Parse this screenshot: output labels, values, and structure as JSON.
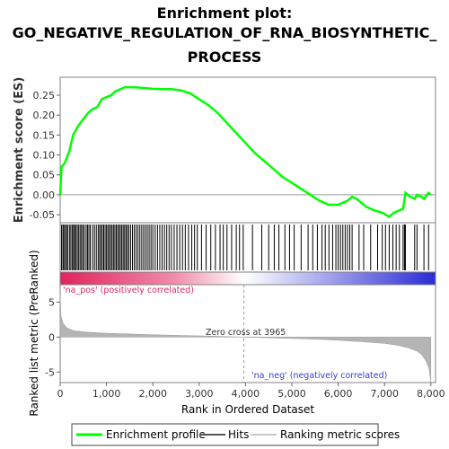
{
  "title_lines": [
    "Enrichment plot:",
    "GO_NEGATIVE_REGULATION_OF_RNA_BIOSYNTHETIC_",
    "PROCESS"
  ],
  "legend": {
    "items": [
      {
        "label": "Enrichment profile",
        "color": "#00ff00"
      },
      {
        "label": "Hits",
        "color": "#555555"
      },
      {
        "label": "Ranking metric scores",
        "color": "#c8c8c8"
      }
    ]
  },
  "chart_data": [
    {
      "type": "line",
      "name": "enrichment-profile",
      "ylabel": "Enrichment score (ES)",
      "ylim": [
        -0.07,
        0.295
      ],
      "xlim": [
        0,
        8100
      ],
      "yticks": [
        "0.25",
        "0.20",
        "0.15",
        "0.10",
        "0.05",
        "0.00",
        "-0.05"
      ],
      "ytick_values": [
        0.25,
        0.2,
        0.15,
        0.1,
        0.05,
        0.0,
        -0.05
      ],
      "color": "#00ff00",
      "points": [
        [
          0,
          0.0
        ],
        [
          30,
          0.07
        ],
        [
          100,
          0.08
        ],
        [
          200,
          0.11
        ],
        [
          280,
          0.15
        ],
        [
          400,
          0.175
        ],
        [
          500,
          0.19
        ],
        [
          600,
          0.205
        ],
        [
          700,
          0.215
        ],
        [
          800,
          0.22
        ],
        [
          900,
          0.24
        ],
        [
          1000,
          0.245
        ],
        [
          1100,
          0.25
        ],
        [
          1200,
          0.26
        ],
        [
          1300,
          0.265
        ],
        [
          1400,
          0.27
        ],
        [
          1600,
          0.27
        ],
        [
          1800,
          0.268
        ],
        [
          2000,
          0.266
        ],
        [
          2200,
          0.265
        ],
        [
          2400,
          0.265
        ],
        [
          2600,
          0.262
        ],
        [
          2800,
          0.255
        ],
        [
          3000,
          0.24
        ],
        [
          3200,
          0.225
        ],
        [
          3400,
          0.205
        ],
        [
          3600,
          0.18
        ],
        [
          3800,
          0.155
        ],
        [
          4000,
          0.13
        ],
        [
          4200,
          0.105
        ],
        [
          4400,
          0.085
        ],
        [
          4600,
          0.065
        ],
        [
          4800,
          0.045
        ],
        [
          5000,
          0.03
        ],
        [
          5200,
          0.015
        ],
        [
          5400,
          0.0
        ],
        [
          5600,
          -0.015
        ],
        [
          5800,
          -0.025
        ],
        [
          6000,
          -0.025
        ],
        [
          6200,
          -0.015
        ],
        [
          6300,
          -0.005
        ],
        [
          6400,
          -0.01
        ],
        [
          6600,
          -0.03
        ],
        [
          6800,
          -0.04
        ],
        [
          6950,
          -0.045
        ],
        [
          7100,
          -0.055
        ],
        [
          7200,
          -0.045
        ],
        [
          7300,
          -0.04
        ],
        [
          7400,
          -0.035
        ],
        [
          7450,
          0.005
        ],
        [
          7550,
          -0.005
        ],
        [
          7650,
          -0.01
        ],
        [
          7700,
          0.0
        ],
        [
          7800,
          -0.005
        ],
        [
          7850,
          -0.01
        ],
        [
          7950,
          0.005
        ],
        [
          8000,
          0.0
        ]
      ]
    },
    {
      "type": "hits",
      "name": "hits",
      "positions": [
        30,
        60,
        80,
        110,
        140,
        160,
        200,
        230,
        260,
        290,
        310,
        340,
        370,
        400,
        430,
        460,
        490,
        520,
        560,
        590,
        620,
        650,
        700,
        740,
        780,
        820,
        850,
        880,
        910,
        940,
        970,
        1000,
        1030,
        1060,
        1090,
        1120,
        1150,
        1180,
        1210,
        1240,
        1270,
        1300,
        1330,
        1360,
        1390,
        1420,
        1450,
        1480,
        1520,
        1560,
        1600,
        1640,
        1680,
        1720,
        1760,
        1800,
        1840,
        1880,
        1920,
        1960,
        2000,
        2050,
        2100,
        2150,
        2200,
        2250,
        2300,
        2350,
        2400,
        2460,
        2520,
        2580,
        2640,
        2700,
        2770,
        2840,
        2900,
        2960,
        3050,
        3150,
        3250,
        3350,
        3450,
        3520,
        3600,
        3700,
        3800,
        3870,
        3950,
        4150,
        4350,
        4500,
        4620,
        4720,
        4850,
        4950,
        5050,
        5200,
        5350,
        5450,
        5550,
        5650,
        5720,
        5800,
        5880,
        5950,
        6000,
        6050,
        6100,
        6150,
        6200,
        6250,
        6300,
        6450,
        6550,
        6700,
        6850,
        6950,
        7020,
        7100,
        7180,
        7250,
        7320,
        7400,
        7430,
        7450,
        7650,
        7700,
        7850,
        7950
      ]
    },
    {
      "type": "area",
      "name": "ranked-list-metric",
      "ylabel": "Ranked list metric (PreRanked)",
      "xlabel": "Rank in Ordered Dataset",
      "ylim": [
        -6.5,
        7.5
      ],
      "xlim": [
        0,
        8100
      ],
      "yticks": [
        "5",
        "0",
        "-5"
      ],
      "ytick_values": [
        5,
        0,
        -5
      ],
      "xticks": [
        "0",
        "1,000",
        "2,000",
        "3,000",
        "4,000",
        "5,000",
        "6,000",
        "7,000",
        "8,000"
      ],
      "xtick_values": [
        0,
        1000,
        2000,
        3000,
        4000,
        5000,
        6000,
        7000,
        8000
      ],
      "points": [
        [
          0,
          6.0
        ],
        [
          20,
          3.0
        ],
        [
          60,
          2.0
        ],
        [
          150,
          1.3
        ],
        [
          300,
          0.9
        ],
        [
          600,
          0.7
        ],
        [
          1000,
          0.55
        ],
        [
          1500,
          0.45
        ],
        [
          2000,
          0.35
        ],
        [
          2500,
          0.25
        ],
        [
          3000,
          0.18
        ],
        [
          3500,
          0.1
        ],
        [
          3965,
          0.0
        ],
        [
          4500,
          -0.1
        ],
        [
          5000,
          -0.2
        ],
        [
          5500,
          -0.3
        ],
        [
          6000,
          -0.45
        ],
        [
          6500,
          -0.65
        ],
        [
          7000,
          -0.9
        ],
        [
          7300,
          -1.2
        ],
        [
          7500,
          -1.5
        ],
        [
          7700,
          -2.0
        ],
        [
          7800,
          -2.5
        ],
        [
          7900,
          -3.5
        ],
        [
          7960,
          -4.5
        ],
        [
          7990,
          -6.0
        ],
        [
          8000,
          -6.5
        ]
      ],
      "zero_cross_label": "Zero cross at 3965",
      "zero_cross_x": 3965,
      "pos_label": "'na_pos' (positively correlated)",
      "neg_label": "'na_neg' (negatively correlated)",
      "pos_color": "#e0245e",
      "neg_color": "#2b2bd6"
    }
  ]
}
